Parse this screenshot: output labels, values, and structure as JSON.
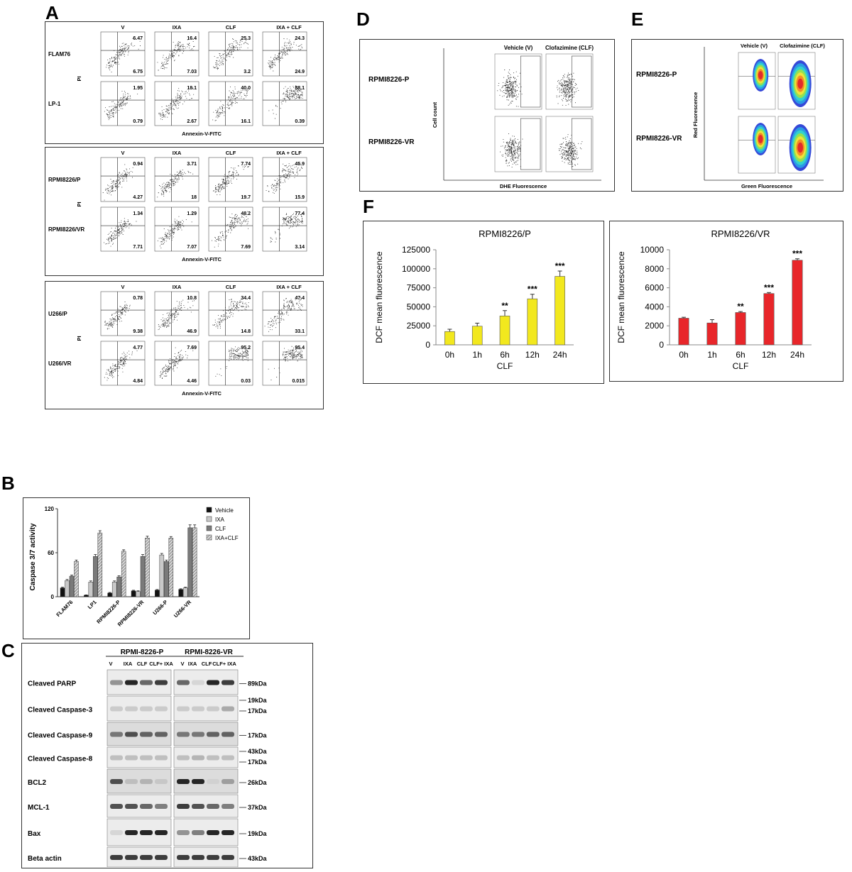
{
  "panels": {
    "a": "A",
    "b": "B",
    "c": "C",
    "d": "D",
    "e": "E",
    "f": "F"
  },
  "panel_a": {
    "conditions": [
      "V",
      "IXA",
      "CLF",
      "IXA + CLF"
    ],
    "xlabel": "Annexin-V-FITC",
    "ylabel": "PI",
    "blocks": [
      {
        "rows": [
          {
            "label": "FLAM76",
            "upper": [
              "6.47",
              "16.4",
              "25.3",
              "24.3"
            ],
            "lower": [
              "6.75",
              "7.03",
              "3.2",
              "24.9"
            ]
          },
          {
            "label": "LP-1",
            "upper": [
              "1.95",
              "18.1",
              "40.0",
              "88.1"
            ],
            "lower": [
              "0.79",
              "2.67",
              "16.1",
              "0.39"
            ]
          }
        ]
      },
      {
        "rows": [
          {
            "label": "RPMI8226/P",
            "upper": [
              "0.94",
              "3.71",
              "7.74",
              "45.9"
            ],
            "lower": [
              "4.27",
              "18",
              "19.7",
              "15.9"
            ]
          },
          {
            "label": "RPMI8226/VR",
            "upper": [
              "1.34",
              "1.29",
              "48.2",
              "77.4"
            ],
            "lower": [
              "7.71",
              "7.07",
              "7.69",
              "3.14"
            ]
          }
        ]
      },
      {
        "rows": [
          {
            "label": "U266/P",
            "upper": [
              "0.78",
              "10.8",
              "34.4",
              "47.4"
            ],
            "lower": [
              "9.38",
              "46.9",
              "14.8",
              "33.1"
            ]
          },
          {
            "label": "U266/VR",
            "upper": [
              "4.77",
              "7.69",
              "95.2",
              "95.4"
            ],
            "lower": [
              "4.84",
              "4.46",
              "0.03",
              "0.015"
            ]
          }
        ]
      }
    ]
  },
  "panel_b": {
    "chart_data": {
      "type": "bar",
      "ylabel": "Caspase 3/7 activity",
      "ylim": [
        0,
        120
      ],
      "yticks": [
        "0",
        "60",
        "120"
      ],
      "categories": [
        "FLAM76",
        "LP1",
        "RPMI8226-P",
        "RPMI8226-VR",
        "U266-P",
        "U266-VR"
      ],
      "series": [
        {
          "name": "Vehicle",
          "values": [
            12,
            2,
            5,
            8,
            9,
            10
          ],
          "errors": [
            1,
            0.5,
            0.8,
            0.8,
            0.8,
            0.8
          ]
        },
        {
          "name": "IXA",
          "values": [
            22,
            20,
            20,
            7,
            57,
            12
          ],
          "errors": [
            1.5,
            1.5,
            1.5,
            1,
            2,
            1
          ]
        },
        {
          "name": "CLF",
          "values": [
            28,
            55,
            27,
            55,
            48,
            94
          ],
          "errors": [
            1.5,
            2.5,
            1.5,
            2.5,
            2,
            4
          ]
        },
        {
          "name": "IXA+CLF",
          "values": [
            48,
            87,
            62,
            80,
            80,
            94
          ],
          "errors": [
            2,
            3,
            2,
            2.5,
            2,
            4
          ]
        }
      ]
    }
  },
  "panel_c": {
    "group_labels": [
      "RPMI-8226-P",
      "RPMI-8226-VR"
    ],
    "lane_labels_left": [
      "V",
      "IXA",
      "CLF",
      "CLF+ IXA"
    ],
    "lane_labels_right": [
      "V",
      "IXA",
      "CLF",
      "CLF+ IXA"
    ],
    "rows": [
      {
        "label": "Cleaved PARP",
        "sizes": [
          "89kDa"
        ]
      },
      {
        "label": "Cleaved Caspase-3",
        "sizes": [
          "19kDa",
          "17kDa"
        ]
      },
      {
        "label": "Cleaved Caspase-9",
        "sizes": [
          "17kDa"
        ]
      },
      {
        "label": "Cleaved Caspase-8",
        "sizes": [
          "43kDa",
          "17kDa"
        ]
      },
      {
        "label": "BCL2",
        "sizes": [
          "26kDa"
        ]
      },
      {
        "label": "MCL-1",
        "sizes": [
          "37kDa"
        ]
      },
      {
        "label": "Bax",
        "sizes": [
          "19kDa"
        ]
      },
      {
        "label": "Beta actin",
        "sizes": [
          "43kDa"
        ]
      }
    ]
  },
  "panel_d": {
    "conditions": [
      "Vehicle (V)",
      "Clofazimine (CLF)"
    ],
    "rows": [
      "RPMI8226-P",
      "RPMI8226-VR"
    ],
    "xlabel": "DHE Fluorescence",
    "ylabel": "Cell count"
  },
  "panel_e": {
    "conditions": [
      "Vehicle (V)",
      "Clofazimine (CLF)"
    ],
    "rows": [
      "RPMI8226-P",
      "RPMI8226-VR"
    ],
    "xlabel": "Green Fluorescence",
    "ylabel": "Red Fluorescence"
  },
  "panel_f": {
    "chart_data": [
      {
        "type": "bar",
        "title": "RPMI8226/P",
        "xlabel": "CLF",
        "ylabel": "DCF mean fluorescence",
        "ylim": [
          0,
          125000
        ],
        "yticks": [
          "0",
          "25000",
          "50000",
          "75000",
          "100000",
          "125000"
        ],
        "categories": [
          "0h",
          "1h",
          "6h",
          "12h",
          "24h"
        ],
        "values": [
          17500,
          24500,
          38000,
          60500,
          90000
        ],
        "errors": [
          3000,
          4000,
          7000,
          6000,
          7000
        ],
        "significance": [
          "",
          "",
          "**",
          "***",
          "***"
        ],
        "color": "#f2e81e"
      },
      {
        "type": "bar",
        "title": "RPMI8226/VR",
        "xlabel": "CLF",
        "ylabel": "DCF mean fluorescence",
        "ylim": [
          0,
          10000
        ],
        "yticks": [
          "0",
          "2000",
          "4000",
          "6000",
          "8000",
          "10000"
        ],
        "categories": [
          "0h",
          "1h",
          "6h",
          "12h",
          "24h"
        ],
        "values": [
          2800,
          2300,
          3400,
          5400,
          8900
        ],
        "errors": [
          100,
          350,
          100,
          100,
          150
        ],
        "significance": [
          "",
          "",
          "**",
          "***",
          "***"
        ],
        "color": "#e8262a"
      }
    ]
  }
}
